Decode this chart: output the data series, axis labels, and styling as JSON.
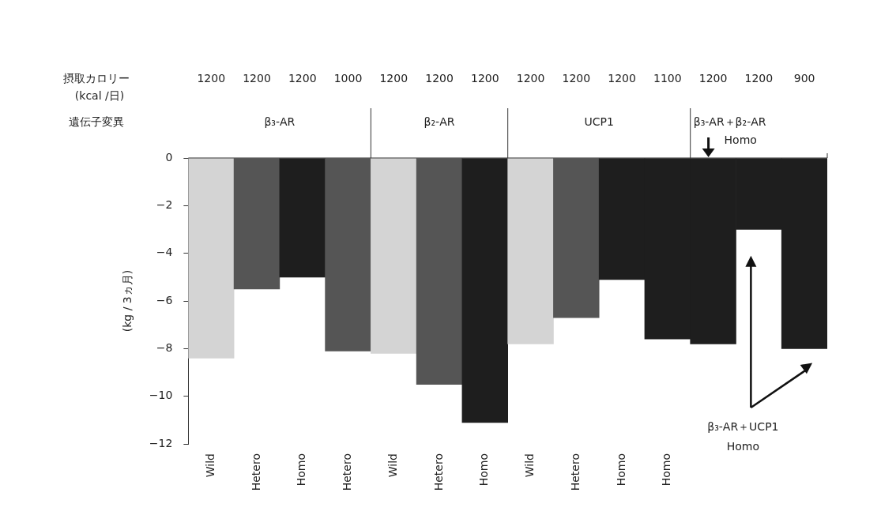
{
  "chart_data": {
    "type": "bar",
    "ylabel": "(kg / 3ヵ月)",
    "categories": [
      "Wild",
      "Hetero",
      "Homo",
      "Hetero",
      "Wild",
      "Hetero",
      "Homo",
      "Wild",
      "Hetero",
      "Homo",
      "Homo",
      null,
      null,
      null
    ],
    "values": [
      -8.4,
      -5.5,
      -5.0,
      -8.1,
      -8.2,
      -9.5,
      -11.1,
      -7.8,
      -6.7,
      -5.1,
      -7.6,
      -7.8,
      -3.0,
      -8.0
    ],
    "colors": [
      "#d4d4d4",
      "#555555",
      "#1e1e1e",
      "#555555",
      "#d4d4d4",
      "#555555",
      "#1e1e1e",
      "#d4d4d4",
      "#555555",
      "#1e1e1e",
      "#1e1e1e",
      "#1e1e1e",
      "#1e1e1e",
      "#1e1e1e"
    ],
    "ylim": [
      -12,
      0
    ],
    "yticks": [
      {
        "value": -12,
        "label": "−12"
      },
      {
        "value": -10,
        "label": "−10"
      },
      {
        "value": -8,
        "label": "−8"
      },
      {
        "value": -6,
        "label": "−6"
      },
      {
        "value": -4,
        "label": "−4"
      },
      {
        "value": -2,
        "label": "−2"
      },
      0
    ],
    "grid": false,
    "legend": false,
    "annotations": [
      "摂取カロリー",
      "(kcal /日)",
      "遺伝子変異",
      "1200",
      "1200",
      "1200",
      "1000",
      "1200",
      "1200",
      "1200",
      "1200",
      "1200",
      "1200",
      "1100",
      "1200",
      "1200",
      "900",
      "β₃-AR",
      "β₂-AR",
      "UCP1",
      "β₃-AR＋β₂-AR",
      "Homo",
      "β₃-AR＋UCP1",
      "Homo"
    ]
  }
}
